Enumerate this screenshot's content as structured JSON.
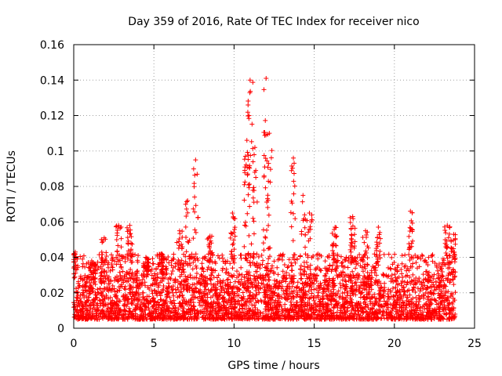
{
  "chart_data": {
    "type": "scatter",
    "title": "Day 359 of 2016, Rate Of TEC Index for receiver nico",
    "xlabel": "GPS time / hours",
    "ylabel": "ROTI / TECUs",
    "xlim": [
      0,
      25
    ],
    "ylim": [
      0,
      0.16
    ],
    "x_ticks": [
      0,
      5,
      10,
      15,
      20,
      25
    ],
    "x_tick_labels": [
      "0",
      "5",
      "10",
      "15",
      "20",
      "25"
    ],
    "y_ticks": [
      0,
      0.02,
      0.04,
      0.06,
      0.08,
      0.1,
      0.12,
      0.14,
      0.16
    ],
    "y_tick_labels": [
      "0",
      "0.02",
      "0.04",
      "0.06",
      "0.08",
      "0.1",
      "0.12",
      "0.14",
      "0.16"
    ],
    "grid": true,
    "marker": "+",
    "color": "#ff0000",
    "series": [
      {
        "name": "ROTI",
        "description": "Dense scatter of ROTI samples from 0 to ~23.8 h; baseline 0.005-0.03 TECUs with spikes",
        "x_range": [
          0,
          23.8
        ],
        "baseline_range": [
          0.005,
          0.03
        ],
        "peaks": [
          {
            "x": 0.1,
            "y": 0.043
          },
          {
            "x": 1.2,
            "y": 0.037
          },
          {
            "x": 1.9,
            "y": 0.051
          },
          {
            "x": 2.8,
            "y": 0.058
          },
          {
            "x": 3.5,
            "y": 0.058
          },
          {
            "x": 4.5,
            "y": 0.04
          },
          {
            "x": 5.5,
            "y": 0.042
          },
          {
            "x": 6.6,
            "y": 0.055
          },
          {
            "x": 7.1,
            "y": 0.072
          },
          {
            "x": 7.6,
            "y": 0.095
          },
          {
            "x": 8.5,
            "y": 0.052
          },
          {
            "x": 9.9,
            "y": 0.065
          },
          {
            "x": 10.8,
            "y": 0.106
          },
          {
            "x": 11.0,
            "y": 0.14
          },
          {
            "x": 11.3,
            "y": 0.102
          },
          {
            "x": 12.0,
            "y": 0.141
          },
          {
            "x": 12.2,
            "y": 0.11
          },
          {
            "x": 13.7,
            "y": 0.096
          },
          {
            "x": 14.3,
            "y": 0.075
          },
          {
            "x": 14.7,
            "y": 0.065
          },
          {
            "x": 16.3,
            "y": 0.057
          },
          {
            "x": 17.4,
            "y": 0.063
          },
          {
            "x": 18.2,
            "y": 0.055
          },
          {
            "x": 19.0,
            "y": 0.057
          },
          {
            "x": 21.0,
            "y": 0.066
          },
          {
            "x": 23.3,
            "y": 0.058
          },
          {
            "x": 23.7,
            "y": 0.053
          }
        ]
      }
    ]
  }
}
